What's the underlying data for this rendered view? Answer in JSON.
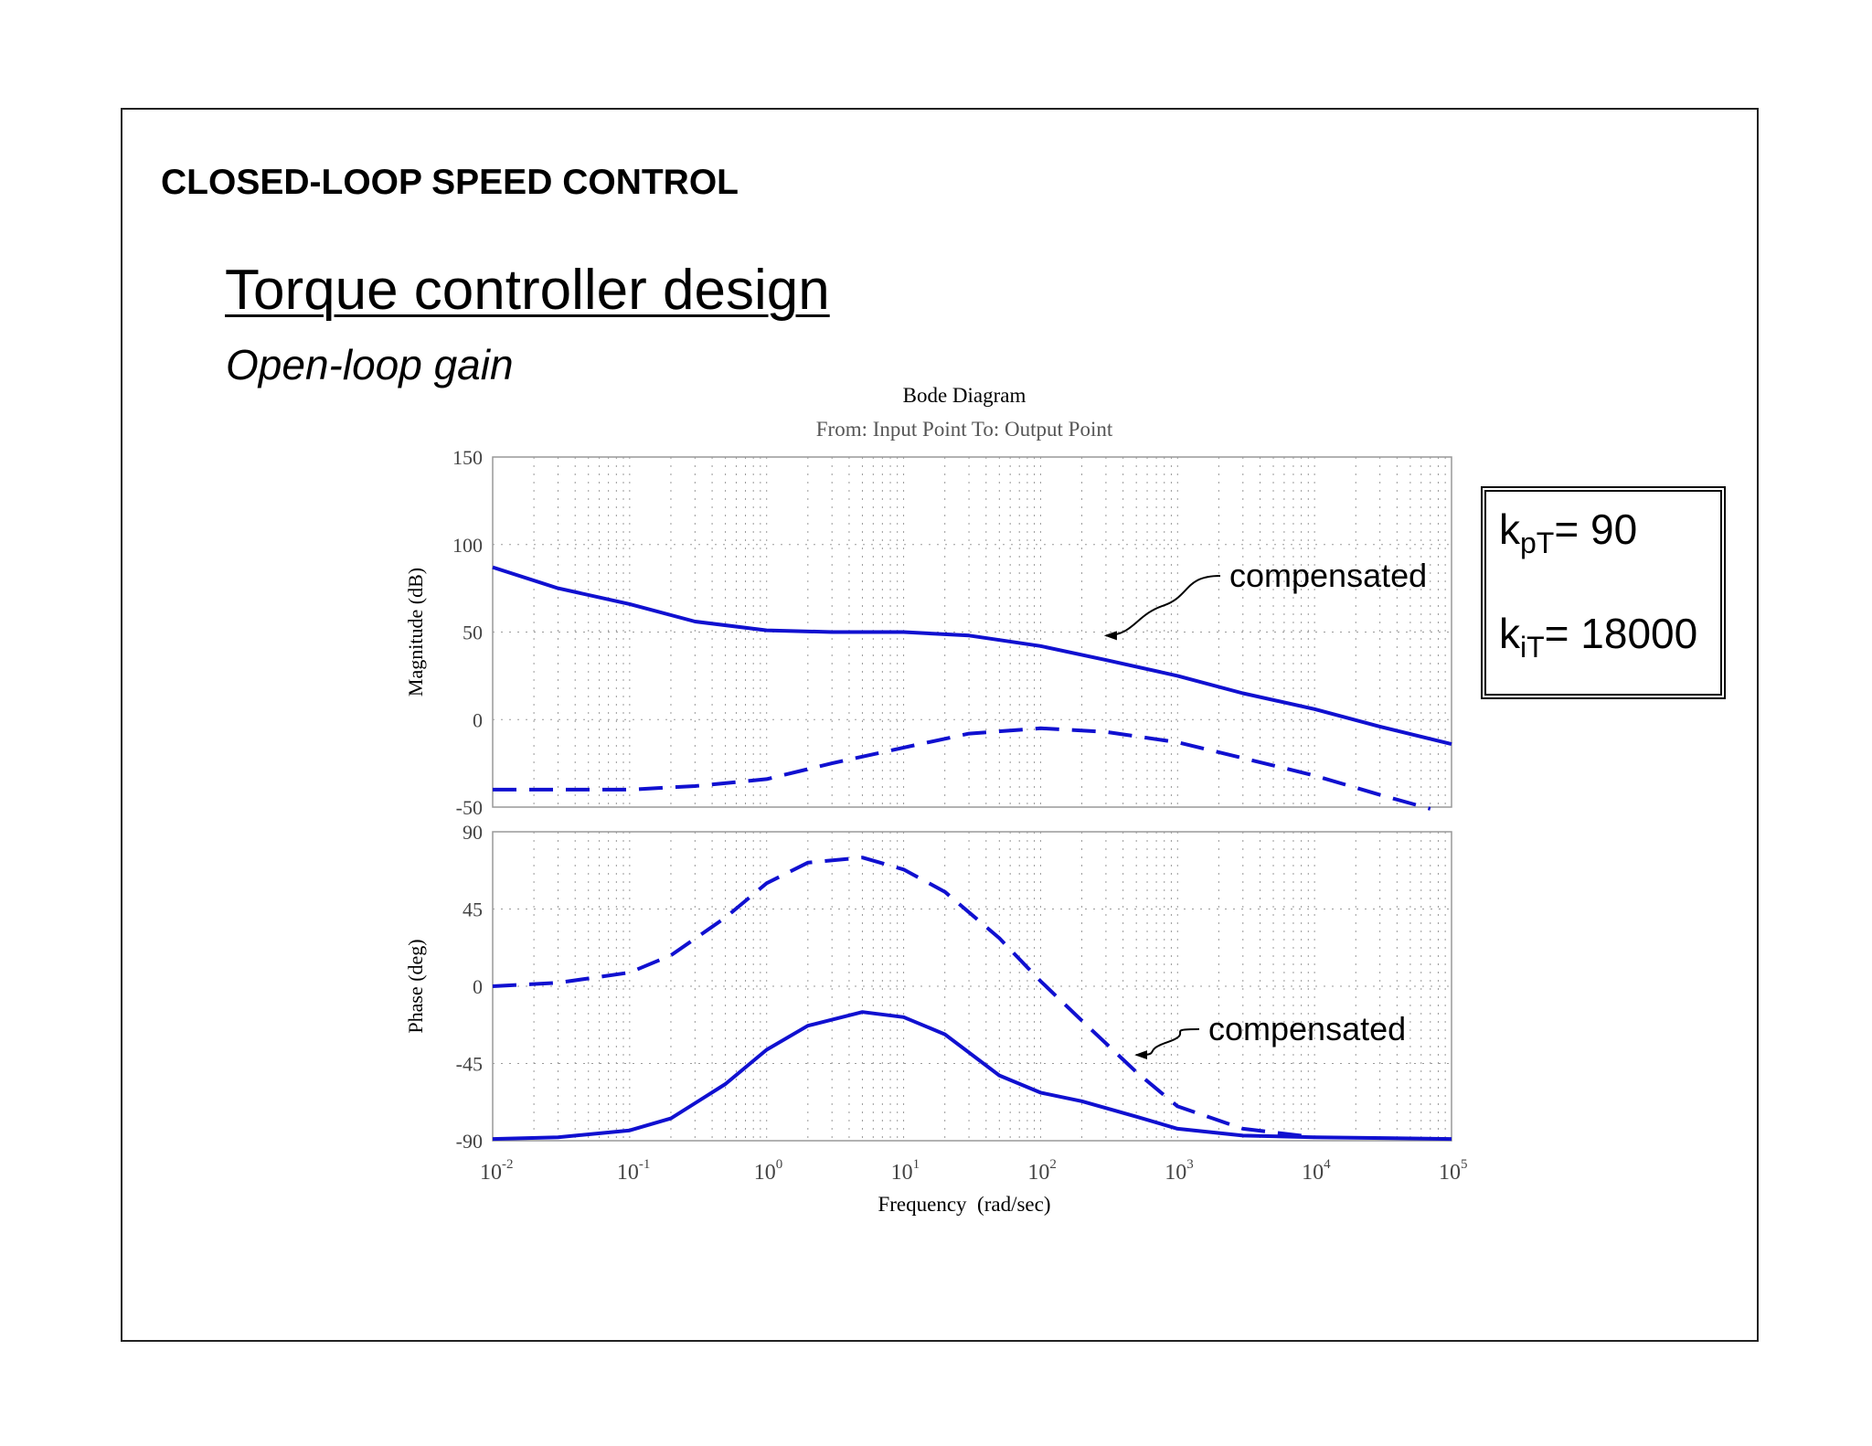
{
  "slide": {
    "section_title": "CLOSED-LOOP SPEED CONTROL",
    "title": "Torque controller design",
    "subtitle": "Open-loop gain"
  },
  "gains": {
    "kp_symbol": "k",
    "kp_sub": "pT",
    "kp_value": "= 90",
    "ki_symbol": "k",
    "ki_sub": "iT",
    "ki_value": "= 18000"
  },
  "chart_data": {
    "type": "line",
    "title": "Bode Diagram",
    "subtitle": "From: Input Point  To: Output Point",
    "xlabel": "Frequency  (rad/sec)",
    "xscale": "log",
    "xlim": [
      0.01,
      100000
    ],
    "x_tick_labels": [
      "10-2",
      "10-1",
      "100",
      "101",
      "102",
      "103",
      "104",
      "105"
    ],
    "grid": true,
    "color": "#1010d0",
    "panels": [
      {
        "ylabel": "Magnitude (dB)",
        "ylim": [
          -50,
          150
        ],
        "yticks": [
          150,
          100,
          50,
          0,
          -50
        ],
        "series": [
          {
            "style": "solid",
            "x": [
              0.01,
              0.03,
              0.1,
              0.3,
              1,
              3,
              10,
              30,
              100,
              300,
              1000,
              3000,
              10000,
              30000,
              100000
            ],
            "y": [
              87,
              75,
              66,
              56,
              51,
              50,
              50,
              48,
              42,
              34,
              25,
              15,
              6,
              -4,
              -14
            ]
          },
          {
            "style": "dashed",
            "x": [
              0.01,
              0.03,
              0.1,
              0.3,
              1,
              3,
              10,
              30,
              100,
              300,
              1000,
              3000,
              10000,
              30000,
              70000
            ],
            "y": [
              -40,
              -40,
              -40,
              -38,
              -34,
              -25,
              -16,
              -8,
              -5,
              -7,
              -13,
              -22,
              -32,
              -43,
              -51
            ]
          }
        ],
        "annotation": {
          "text": "compensated",
          "x": 300,
          "y": 48
        }
      },
      {
        "ylabel": "Phase (deg)",
        "ylim": [
          -90,
          90
        ],
        "yticks": [
          90,
          45,
          0,
          -45,
          -90
        ],
        "series": [
          {
            "style": "solid",
            "x": [
              0.01,
              0.03,
              0.1,
              0.2,
              0.5,
              1,
              2,
              5,
              10,
              20,
              50,
              100,
              200,
              500,
              1000,
              3000,
              10000,
              100000
            ],
            "y": [
              -89,
              -88,
              -84,
              -77,
              -57,
              -37,
              -23,
              -15,
              -18,
              -28,
              -52,
              -62,
              -67,
              -76,
              -83,
              -87,
              -88,
              -89
            ]
          },
          {
            "style": "dashed",
            "x": [
              0.01,
              0.03,
              0.1,
              0.2,
              0.5,
              1,
              2,
              5,
              10,
              20,
              50,
              100,
              200,
              500,
              1000,
              3000,
              10000
            ],
            "y": [
              0,
              2,
              8,
              18,
              40,
              60,
              72,
              75,
              68,
              55,
              28,
              3,
              -20,
              -50,
              -70,
              -83,
              -88
            ]
          }
        ],
        "annotation": {
          "text": "compensated",
          "x": 500,
          "y": -40
        }
      }
    ]
  }
}
